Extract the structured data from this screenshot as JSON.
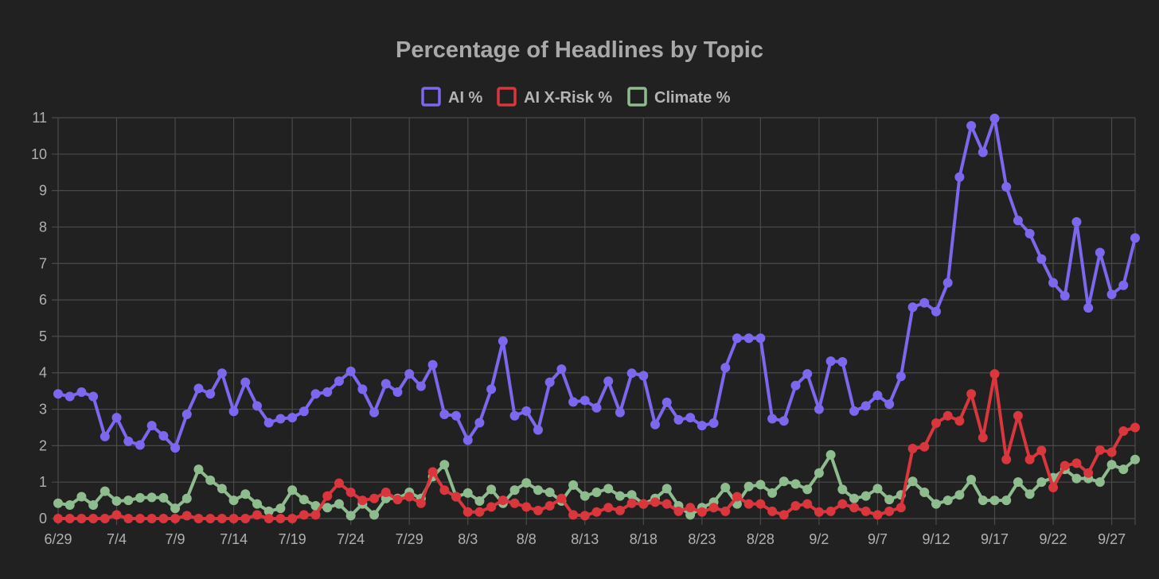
{
  "chart_data": {
    "type": "line",
    "title": "Percentage of Headlines by Topic",
    "xlabel": "",
    "ylabel": "",
    "ylim": [
      0,
      11
    ],
    "y_ticks": [
      0,
      1,
      2,
      3,
      4,
      5,
      6,
      7,
      8,
      9,
      10,
      11
    ],
    "x_tick_labels": [
      "6/29",
      "7/4",
      "7/9",
      "7/14",
      "7/19",
      "7/24",
      "7/29",
      "8/3",
      "8/8",
      "8/13",
      "8/18",
      "8/23",
      "8/28",
      "9/2",
      "9/7",
      "9/12",
      "9/17",
      "9/22",
      "9/27"
    ],
    "x_tick_step_days": 5,
    "grid": true,
    "legend_position": "top-center",
    "background": "#212121",
    "series": [
      {
        "name": "AI %",
        "color": "#7b68ee",
        "values": [
          3.42,
          3.35,
          3.47,
          3.35,
          2.25,
          2.77,
          2.12,
          2.02,
          2.55,
          2.27,
          1.94,
          2.86,
          3.57,
          3.42,
          3.99,
          2.94,
          3.74,
          3.09,
          2.63,
          2.74,
          2.77,
          2.94,
          3.42,
          3.47,
          3.77,
          4.04,
          3.55,
          2.91,
          3.7,
          3.47,
          3.97,
          3.63,
          4.22,
          2.86,
          2.82,
          2.15,
          2.63,
          3.55,
          4.87,
          2.82,
          2.95,
          2.43,
          3.74,
          4.1,
          3.2,
          3.24,
          3.04,
          3.77,
          2.91,
          3.99,
          3.92,
          2.58,
          3.19,
          2.71,
          2.77,
          2.55,
          2.62,
          4.14,
          4.95,
          4.95,
          4.95,
          2.74,
          2.68,
          3.65,
          3.97,
          3.0,
          4.32,
          4.3,
          2.95,
          3.09,
          3.38,
          3.14,
          3.9,
          5.8,
          5.92,
          5.68,
          6.47,
          9.37,
          10.78,
          10.05,
          10.98,
          9.1,
          8.18,
          7.82,
          7.12,
          6.47,
          6.11,
          8.14,
          5.78,
          7.3,
          6.15,
          6.4,
          7.7
        ]
      },
      {
        "name": "AI X-Risk %",
        "color": "#d9363e",
        "values": [
          0.0,
          0.0,
          0.0,
          0.0,
          0.0,
          0.1,
          0.0,
          0.0,
          0.0,
          0.0,
          0.0,
          0.08,
          0.0,
          0.0,
          0.0,
          0.0,
          0.0,
          0.1,
          0.0,
          0.0,
          0.0,
          0.1,
          0.1,
          0.62,
          0.97,
          0.72,
          0.5,
          0.55,
          0.72,
          0.52,
          0.6,
          0.42,
          1.28,
          0.78,
          0.6,
          0.18,
          0.18,
          0.32,
          0.5,
          0.42,
          0.32,
          0.22,
          0.35,
          0.55,
          0.1,
          0.08,
          0.18,
          0.3,
          0.22,
          0.42,
          0.4,
          0.45,
          0.4,
          0.2,
          0.3,
          0.18,
          0.3,
          0.2,
          0.6,
          0.4,
          0.4,
          0.2,
          0.1,
          0.35,
          0.4,
          0.18,
          0.2,
          0.4,
          0.3,
          0.2,
          0.1,
          0.2,
          0.3,
          1.92,
          1.97,
          2.62,
          2.82,
          2.68,
          3.42,
          2.22,
          3.97,
          1.62,
          2.82,
          1.62,
          1.87,
          0.85,
          1.45,
          1.52,
          1.25,
          1.88,
          1.82,
          2.4,
          2.5
        ]
      },
      {
        "name": "Climate %",
        "color": "#8fbc8f",
        "values": [
          0.42,
          0.37,
          0.6,
          0.37,
          0.75,
          0.48,
          0.5,
          0.57,
          0.58,
          0.57,
          0.28,
          0.55,
          1.35,
          1.05,
          0.82,
          0.5,
          0.67,
          0.4,
          0.2,
          0.28,
          0.78,
          0.52,
          0.35,
          0.3,
          0.4,
          0.08,
          0.4,
          0.1,
          0.55,
          0.55,
          0.72,
          0.55,
          1.15,
          1.48,
          0.6,
          0.7,
          0.48,
          0.8,
          0.42,
          0.78,
          0.98,
          0.78,
          0.72,
          0.48,
          0.92,
          0.62,
          0.72,
          0.82,
          0.62,
          0.65,
          0.4,
          0.55,
          0.82,
          0.35,
          0.1,
          0.3,
          0.45,
          0.85,
          0.4,
          0.88,
          0.93,
          0.7,
          1.02,
          0.95,
          0.8,
          1.25,
          1.75,
          0.8,
          0.55,
          0.62,
          0.82,
          0.52,
          0.65,
          1.02,
          0.72,
          0.4,
          0.5,
          0.65,
          1.07,
          0.5,
          0.5,
          0.5,
          1.0,
          0.67,
          1.0,
          1.12,
          1.35,
          1.1,
          1.1,
          1.0,
          1.48,
          1.35,
          1.62
        ]
      }
    ]
  }
}
